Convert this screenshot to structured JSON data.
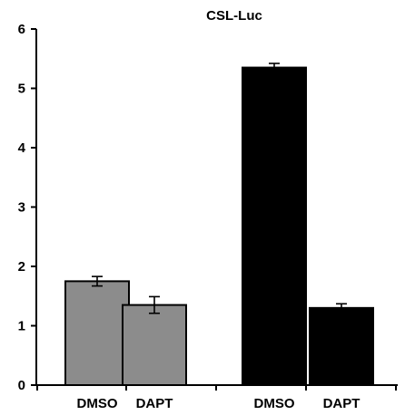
{
  "chart_data": {
    "type": "bar",
    "title": "CSL-Luc",
    "xlabel": "",
    "ylabel": "",
    "categories": [
      "DMSO",
      "DAPT",
      "DMSO",
      "DAPT"
    ],
    "values": [
      1.75,
      1.35,
      5.35,
      1.3
    ],
    "errors": [
      0.08,
      0.14,
      0.07,
      0.07
    ],
    "bar_colors": [
      "#8c8c8c",
      "#8c8c8c",
      "#000000",
      "#000000"
    ],
    "ylim": [
      0,
      6
    ],
    "yticks": [
      "0",
      "1",
      "2",
      "3",
      "4",
      "5",
      "6"
    ],
    "grid": false,
    "legend": "none"
  }
}
